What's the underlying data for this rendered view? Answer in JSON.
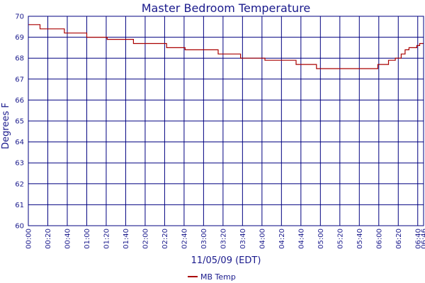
{
  "chart_data": {
    "type": "line",
    "title": "Master Bedroom Temperature",
    "xlabel": "11/05/09 (EDT)",
    "ylabel": "Degrees F",
    "ylim": [
      60,
      70
    ],
    "xlim": [
      "00:00",
      "06:46"
    ],
    "yticks": [
      "60",
      "61",
      "62",
      "63",
      "64",
      "65",
      "66",
      "67",
      "68",
      "69",
      "70"
    ],
    "xticks": [
      "00:00",
      "00:20",
      "00:40",
      "01:00",
      "01:20",
      "01:40",
      "02:00",
      "02:20",
      "02:40",
      "03:00",
      "03:20",
      "03:40",
      "04:00",
      "04:20",
      "04:40",
      "05:00",
      "05:20",
      "05:40",
      "06:00",
      "06:20",
      "06:40",
      "06:46"
    ],
    "grid": true,
    "legend_position": "bottom",
    "series": [
      {
        "name": "MB Temp",
        "color": "#aa0000",
        "step": true,
        "points": [
          [
            "00:00",
            69.6
          ],
          [
            "00:12",
            69.4
          ],
          [
            "00:37",
            69.2
          ],
          [
            "01:00",
            69.0
          ],
          [
            "01:21",
            68.9
          ],
          [
            "01:48",
            68.7
          ],
          [
            "02:22",
            68.5
          ],
          [
            "02:41",
            68.4
          ],
          [
            "03:15",
            68.2
          ],
          [
            "03:38",
            68.0
          ],
          [
            "04:03",
            67.9
          ],
          [
            "04:35",
            67.7
          ],
          [
            "04:56",
            67.5
          ],
          [
            "05:59",
            67.7
          ],
          [
            "06:10",
            67.9
          ],
          [
            "06:17",
            68.0
          ],
          [
            "06:23",
            68.2
          ],
          [
            "06:27",
            68.4
          ],
          [
            "06:31",
            68.5
          ],
          [
            "06:36",
            68.5
          ],
          [
            "06:39",
            68.6
          ],
          [
            "06:42",
            68.7
          ],
          [
            "06:46",
            68.7
          ]
        ]
      }
    ]
  }
}
